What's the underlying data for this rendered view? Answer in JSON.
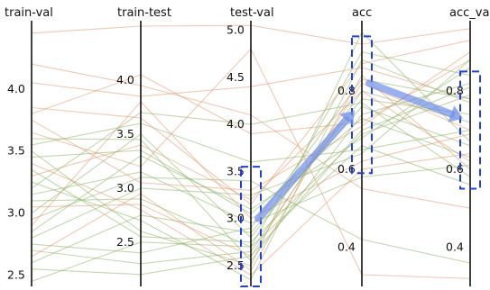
{
  "chart_data": {
    "type": "parallel_coordinates",
    "axes": [
      {
        "name": "train-val",
        "range": [
          2.41,
          4.55
        ],
        "ticks": [
          "2.5",
          "3.0",
          "3.5",
          "4.0"
        ]
      },
      {
        "name": "train-test",
        "range": [
          2.09,
          4.55
        ],
        "ticks": [
          "2.5",
          "3.0",
          "3.5",
          "4.0"
        ]
      },
      {
        "name": "test-val",
        "range": [
          2.28,
          5.1
        ],
        "ticks": [
          "2.5",
          "3.0",
          "3.5",
          "4.0",
          "4.5",
          "5.0"
        ]
      },
      {
        "name": "acc",
        "range": [
          0.3,
          0.98
        ],
        "ticks": [
          "0.4",
          "0.6",
          "0.8"
        ]
      },
      {
        "name": "acc_val",
        "range": [
          0.3,
          0.98
        ],
        "ticks": [
          "0.4",
          "0.6",
          "0.8"
        ]
      }
    ],
    "series_colors": {
      "warm": "#e39a72",
      "cool": "#8fb56a"
    },
    "line_opacity": 0.55,
    "selection_boxes": [
      {
        "axis": "test-val",
        "range": [
          2.28,
          3.55
        ]
      },
      {
        "axis": "acc",
        "range": [
          0.59,
          0.94
        ]
      },
      {
        "axis": "acc_val",
        "range": [
          0.55,
          0.85
        ]
      }
    ],
    "selection_color": "#1f3fe0",
    "arrows": [
      {
        "from": {
          "axis": "test-val",
          "value": 3.0
        },
        "to": {
          "axis": "acc",
          "value": 0.75
        }
      },
      {
        "from": {
          "axis": "acc",
          "value": 0.82
        },
        "to": {
          "axis": "acc_val",
          "value": 0.73
        }
      }
    ],
    "arrow_color": "#6f8fe8",
    "lines": [
      [
        4.45,
        4.5,
        5.05,
        0.92,
        0.96
      ],
      [
        4.05,
        3.85,
        4.4,
        0.86,
        0.78
      ],
      [
        3.8,
        4.05,
        3.9,
        0.72,
        0.88
      ],
      [
        3.55,
        3.6,
        3.6,
        0.65,
        0.7
      ],
      [
        3.3,
        3.4,
        3.2,
        0.8,
        0.62
      ],
      [
        4.2,
        3.95,
        4.1,
        0.55,
        0.5
      ],
      [
        3.1,
        2.9,
        2.7,
        0.9,
        0.84
      ],
      [
        2.95,
        3.1,
        3.4,
        0.42,
        0.36
      ],
      [
        3.65,
        3.2,
        4.8,
        0.33,
        0.32
      ],
      [
        3.2,
        3.7,
        4.0,
        0.77,
        0.58
      ],
      [
        2.75,
        2.4,
        2.9,
        0.83,
        0.78
      ],
      [
        2.55,
        2.2,
        2.6,
        0.7,
        0.81
      ],
      [
        3.4,
        2.8,
        2.4,
        0.6,
        0.64
      ],
      [
        2.85,
        3.3,
        3.1,
        0.68,
        0.86
      ],
      [
        3.5,
        2.6,
        2.5,
        0.95,
        0.67
      ],
      [
        3.0,
        3.5,
        2.8,
        0.78,
        0.74
      ],
      [
        2.65,
        2.95,
        2.45,
        0.84,
        0.6
      ],
      [
        3.75,
        3.05,
        3.3,
        0.71,
        0.9
      ],
      [
        2.45,
        2.5,
        2.7,
        0.66,
        0.56
      ],
      [
        3.25,
        2.7,
        2.35,
        0.88,
        0.77
      ],
      [
        2.9,
        3.8,
        3.0,
        0.62,
        0.69
      ],
      [
        3.6,
        3.45,
        2.55,
        0.74,
        0.82
      ],
      [
        2.7,
        2.3,
        2.65,
        0.8,
        0.72
      ],
      [
        3.15,
        3.15,
        2.95,
        0.58,
        0.61
      ],
      [
        3.85,
        3.65,
        3.15,
        0.87,
        0.93
      ],
      [
        2.6,
        2.75,
        2.85,
        0.76,
        0.66
      ],
      [
        3.35,
        2.55,
        2.75,
        0.69,
        0.79
      ],
      [
        2.8,
        3.0,
        3.25,
        0.64,
        0.88
      ],
      [
        3.05,
        2.85,
        2.6,
        0.82,
        0.7
      ],
      [
        3.45,
        3.35,
        3.05,
        0.73,
        0.63
      ]
    ]
  }
}
